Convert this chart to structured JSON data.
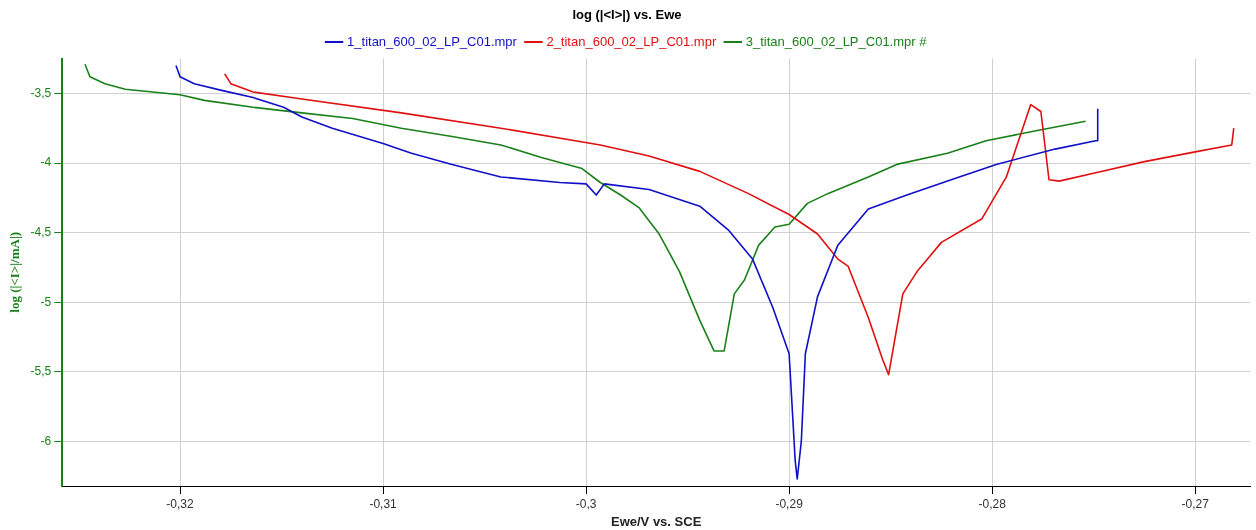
{
  "chart_data": {
    "type": "line",
    "title": "log (|<I>|) vs. Ewe",
    "xlabel": "Ewe/V vs. SCE",
    "ylabel": "log (|<I>|/mA|)",
    "xlim": [
      -0.3258,
      -0.2673
    ],
    "ylim": [
      -6.32,
      -3.25
    ],
    "xticks": [
      {
        "value": -0.32,
        "label": "-0,32"
      },
      {
        "value": -0.31,
        "label": "-0,31"
      },
      {
        "value": -0.3,
        "label": "-0,3"
      },
      {
        "value": -0.29,
        "label": "-0,29"
      },
      {
        "value": -0.28,
        "label": "-0,28"
      },
      {
        "value": -0.27,
        "label": "-0,27"
      }
    ],
    "yticks": [
      {
        "value": -3.5,
        "label": "-3,5"
      },
      {
        "value": -4,
        "label": "-4"
      },
      {
        "value": -4.5,
        "label": "-4,5"
      },
      {
        "value": -5,
        "label": "-5"
      },
      {
        "value": -5.5,
        "label": "-5,5"
      },
      {
        "value": -6,
        "label": "-6"
      }
    ],
    "grid": true,
    "legend": "top",
    "marker": "none",
    "line_style": "solid",
    "series": [
      {
        "name": "1_titan_600_02_LP_C01.mpr",
        "color": "#1010c8",
        "x": [
          -0.3202,
          -0.32,
          -0.3193,
          -0.3179,
          -0.3164,
          -0.3149,
          -0.314,
          -0.3125,
          -0.31,
          -0.3086,
          -0.3066,
          -0.3042,
          -0.3013,
          -0.3,
          -0.2995,
          -0.2991,
          -0.2969,
          -0.2944,
          -0.293,
          -0.2918,
          -0.2908,
          -0.29,
          -0.2897,
          -0.2896,
          -0.2894,
          -0.2892,
          -0.2886,
          -0.2876,
          -0.2861,
          -0.2842,
          -0.2818,
          -0.2798,
          -0.2769,
          -0.2749,
          -0.2748,
          -0.2748
        ],
        "values": [
          -3.3,
          -3.38,
          -3.43,
          -3.48,
          -3.53,
          -3.6,
          -3.67,
          -3.75,
          -3.86,
          -3.93,
          -4.01,
          -4.1,
          -4.14,
          -4.15,
          -4.23,
          -4.15,
          -4.19,
          -4.31,
          -4.48,
          -4.69,
          -5.04,
          -5.37,
          -6.14,
          -6.27,
          -6.0,
          -5.37,
          -4.96,
          -4.59,
          -4.33,
          -4.23,
          -4.11,
          -4.01,
          -3.9,
          -3.84,
          -3.84,
          -3.61
        ]
      },
      {
        "name": "2_titan_600_02_LP_C01.mpr",
        "color": "#e01010",
        "x": [
          -0.3178,
          -0.3175,
          -0.3164,
          -0.314,
          -0.3091,
          -0.3042,
          -0.2993,
          -0.2969,
          -0.2944,
          -0.292,
          -0.29,
          -0.2886,
          -0.2876,
          -0.2871,
          -0.2861,
          -0.2854,
          -0.2851,
          -0.2844,
          -0.2837,
          -0.2825,
          -0.2805,
          -0.2793,
          -0.2781,
          -0.2776,
          -0.2772,
          -0.2767,
          -0.2749,
          -0.2725,
          -0.27,
          -0.2682,
          -0.2681
        ],
        "values": [
          -3.36,
          -3.43,
          -3.49,
          -3.54,
          -3.64,
          -3.75,
          -3.87,
          -3.95,
          -4.06,
          -4.22,
          -4.37,
          -4.51,
          -4.69,
          -4.74,
          -5.11,
          -5.41,
          -5.52,
          -4.94,
          -4.78,
          -4.57,
          -4.4,
          -4.1,
          -3.58,
          -3.63,
          -4.12,
          -4.13,
          -4.07,
          -3.99,
          -3.92,
          -3.87,
          -3.75
        ]
      },
      {
        "name": "3_titan_600_02_LP_C01.mpr #",
        "color": "#1a801a",
        "x": [
          -0.32468,
          -0.32444,
          -0.3237,
          -0.3227,
          -0.32,
          -0.3188,
          -0.3164,
          -0.314,
          -0.3115,
          -0.3091,
          -0.3066,
          -0.3042,
          -0.3022,
          -0.3002,
          -0.2993,
          -0.2983,
          -0.2974,
          -0.2964,
          -0.2954,
          -0.2944,
          -0.2937,
          -0.2932,
          -0.2927,
          -0.2922,
          -0.2915,
          -0.2907,
          -0.29,
          -0.2891,
          -0.2881,
          -0.2861,
          -0.2847,
          -0.2822,
          -0.2803,
          -0.2779,
          -0.2754
        ],
        "values": [
          -3.29,
          -3.38,
          -3.43,
          -3.47,
          -3.51,
          -3.55,
          -3.6,
          -3.64,
          -3.68,
          -3.75,
          -3.81,
          -3.87,
          -3.96,
          -4.04,
          -4.14,
          -4.23,
          -4.32,
          -4.51,
          -4.78,
          -5.13,
          -5.35,
          -5.35,
          -4.94,
          -4.84,
          -4.59,
          -4.46,
          -4.44,
          -4.29,
          -4.22,
          -4.1,
          -4.01,
          -3.93,
          -3.84,
          -3.77,
          -3.7
        ]
      }
    ]
  }
}
